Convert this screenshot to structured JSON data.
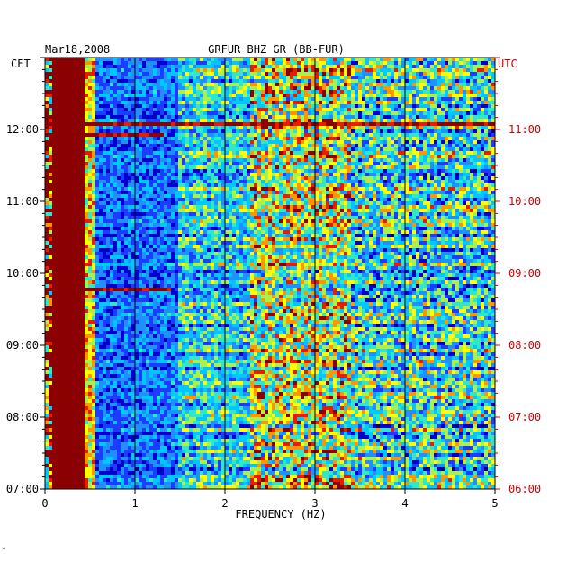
{
  "header": {
    "date": "Mar18,2008",
    "station": "GRFUR BHZ GR (BB-FUR)",
    "left_zone": "CET",
    "right_zone": "UTC"
  },
  "footer": {
    "mark": "*"
  },
  "colors": {
    "right_axis": "#cc0000",
    "text": "#000000"
  },
  "chart_data": {
    "type": "heatmap",
    "title": "GRFUR BHZ GR (BB-FUR)",
    "xlabel": "FREQUENCY (HZ)",
    "xlim": [
      0,
      5
    ],
    "x_ticks": [
      "0",
      "1",
      "2",
      "3",
      "4",
      "5"
    ],
    "ylim_hours": [
      7,
      13
    ],
    "y_ticks_left": [
      "07:00",
      "08:00",
      "09:00",
      "10:00",
      "11:00",
      "12:00"
    ],
    "y_ticks_right": [
      "06:00",
      "07:00",
      "08:00",
      "09:00",
      "10:00",
      "11:00"
    ],
    "grid_x_lines_hz": [
      1,
      2,
      3,
      4
    ],
    "colormap": [
      "#00008b",
      "#0000cd",
      "#1e3cff",
      "#1e90ff",
      "#00c8ff",
      "#32e6c8",
      "#aaf050",
      "#ffff00",
      "#ff9600",
      "#e61e00",
      "#8b0000"
    ],
    "features": {
      "microseism_band_hz": [
        0.1,
        0.45
      ],
      "transient_events_cet": [
        {
          "time": "12:05",
          "max_hz": 5.0
        },
        {
          "time": "11:55",
          "max_hz": 1.3
        },
        {
          "time": "09:46",
          "max_hz": 1.4
        }
      ]
    }
  }
}
